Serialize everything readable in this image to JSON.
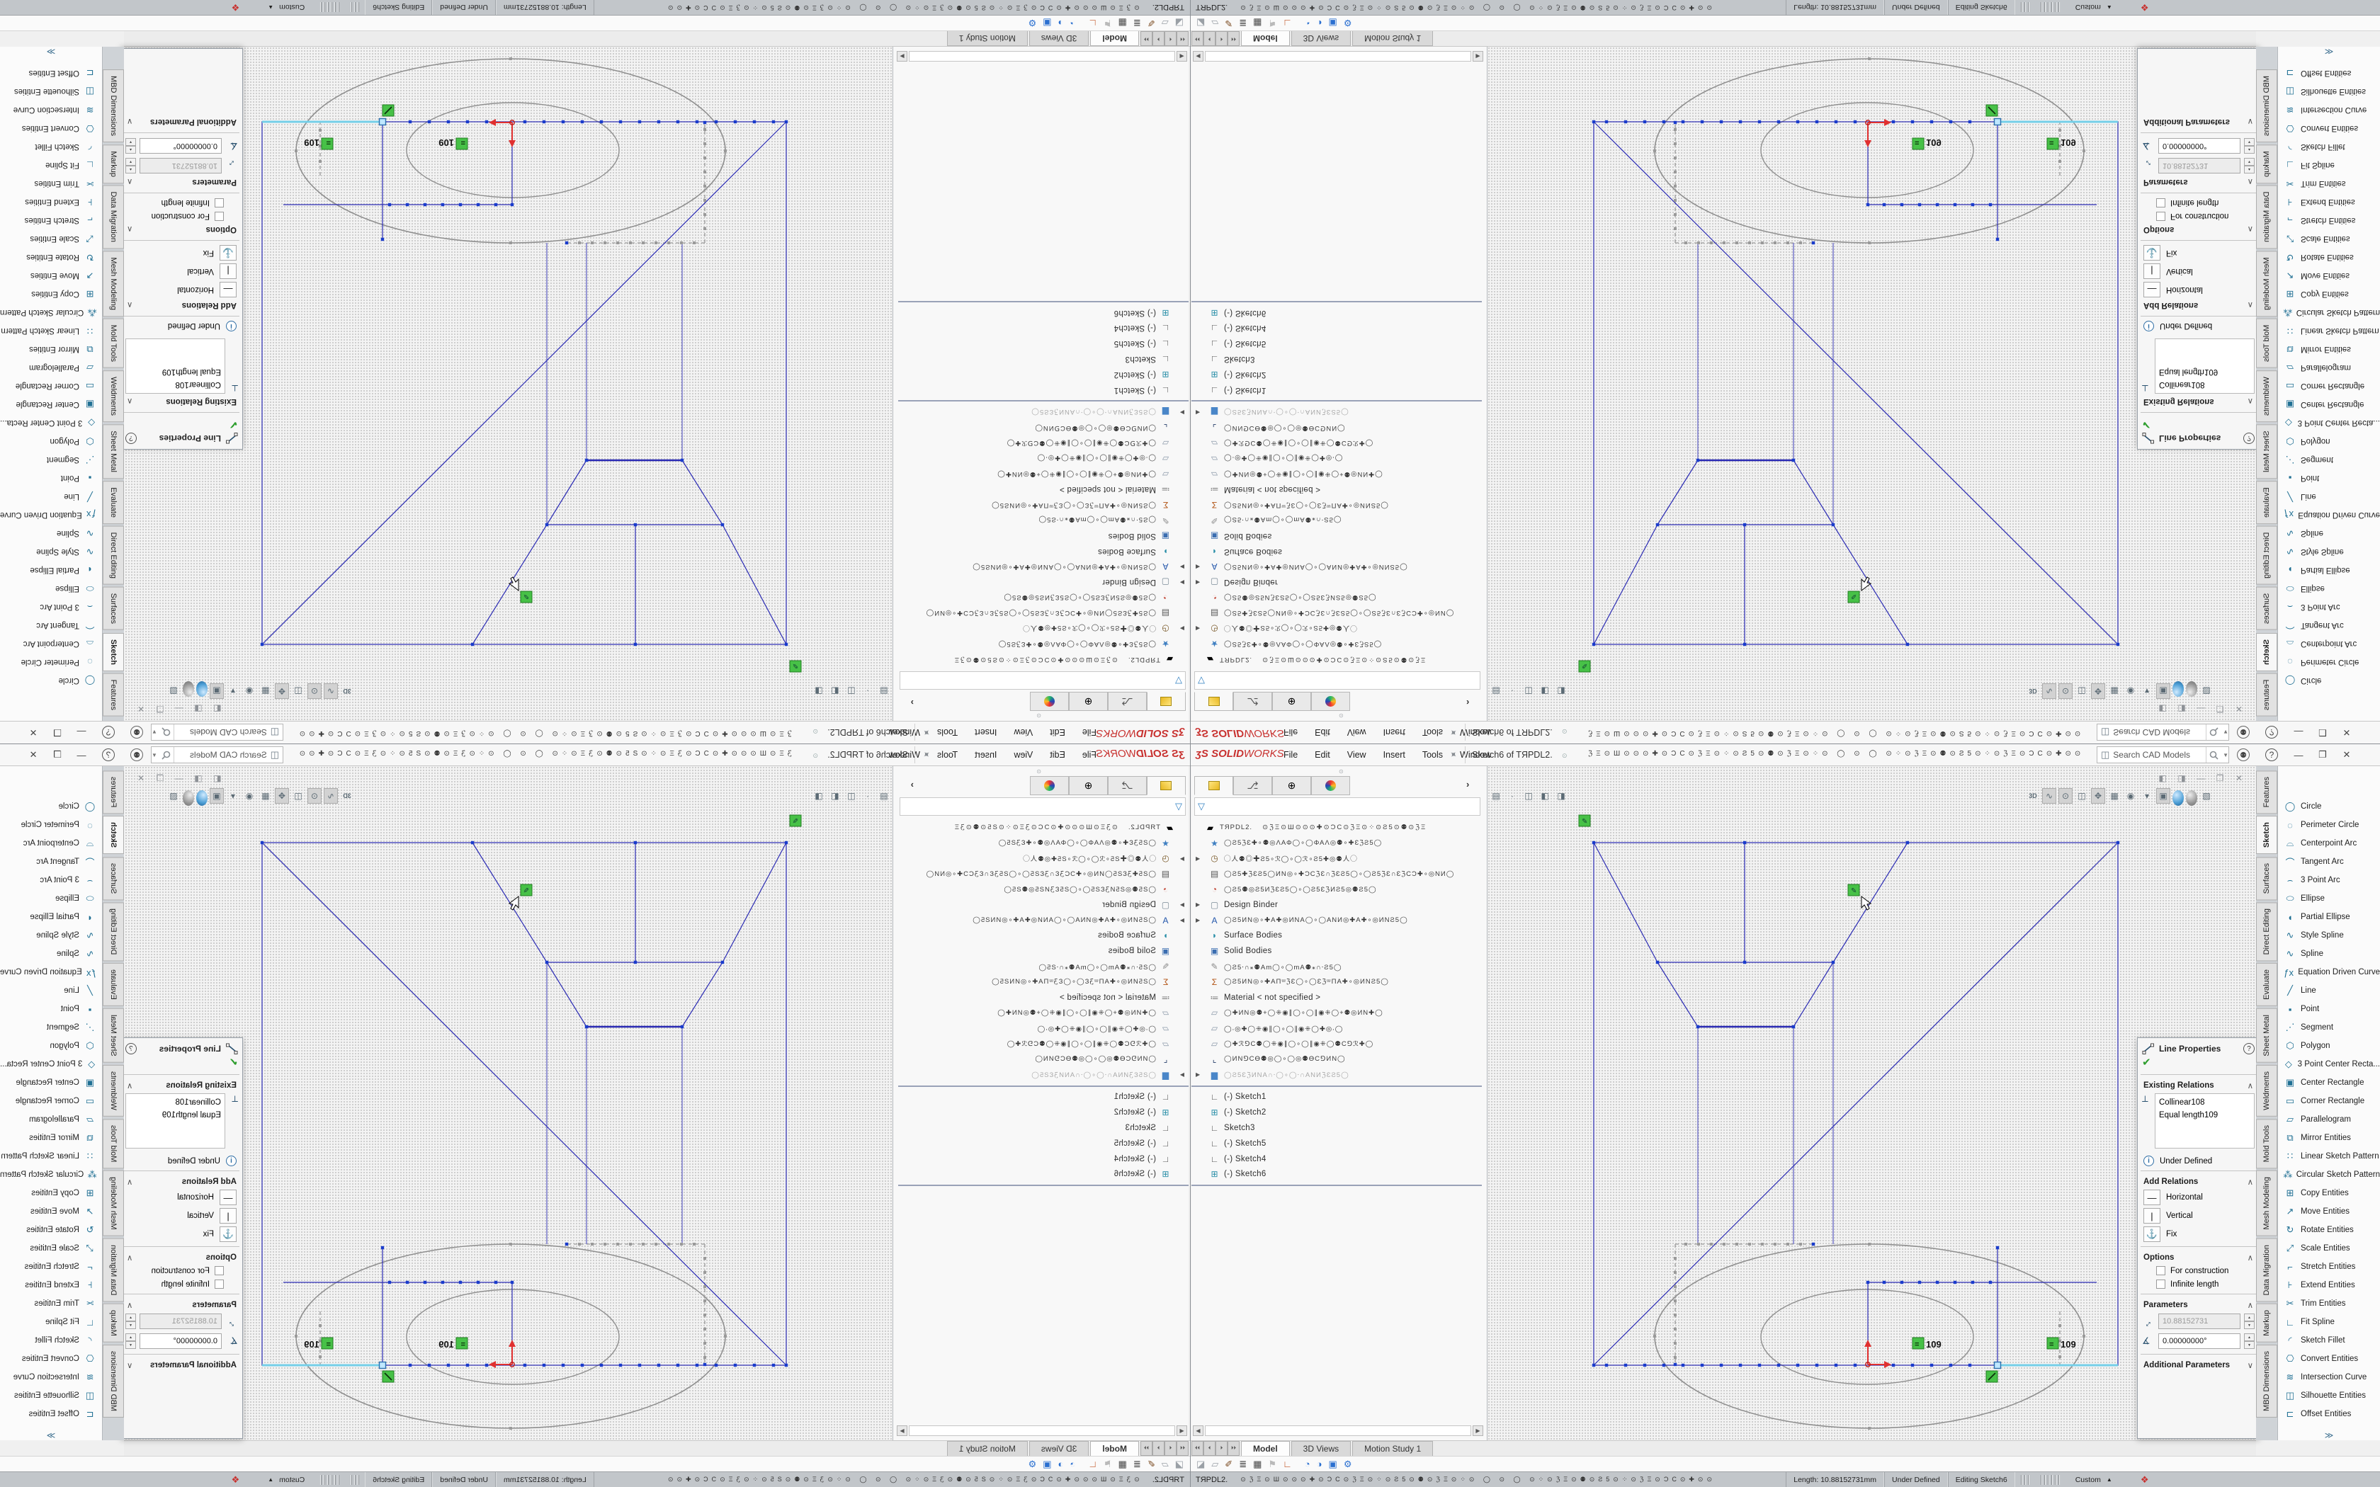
{
  "window": {
    "logo_3s": "ʒS",
    "logo_solid": "SOLID",
    "logo_works": "WORKS",
    "menus": [
      {
        "label": "File"
      },
      {
        "label": "Edit"
      },
      {
        "label": "View"
      },
      {
        "label": "Insert"
      },
      {
        "label": "Tools"
      },
      {
        "label": "Window"
      }
    ],
    "title": "Sketch6 of TЯPDL2.",
    "glyph_row": "ℨΞ⊙Ш⊙⊙⊙✚⊙ƆϹ⊙ℨΞ⊙⁘⊙Ƨ5⊙⚉⊙ℨΞ⊙⁘⊙ ◯ ⊙ ◯ ⊙⁘⊙ℨΞ⊙⚉⊙Ƨ5⊙⁘⊙ℨΞ⊙ƆϹ⊙✚⊙⊙…",
    "search_placeholder": "Search CAD Models"
  },
  "tree": {
    "rows": [
      {
        "cls": "root garb",
        "icon": "▰",
        "icls": "i-part",
        "label": "TЯPDL2.",
        "g2": "  ⊙ℨΞ⊙Ш⊙⊙⊙✚⊙ƆϹ⊙ℨΞ⊙⁘⊙Ƨ5⊙⚉⊙ℨΞ"
      },
      {
        "cls": "garb",
        "icon": "★",
        "icolor": "#3f7fc1",
        "label": "◯Ƨ5ℨƐ✚∘⚉◎ΛΑΦ◯∘◯ΦΑΛ◎⚉∘✚ƐℨƧ5◯"
      },
      {
        "cls": "garb",
        "arrow": true,
        "icon": "◷",
        "icolor": "#7a5a2a",
        "label": "◯人⚉◎✚Ƨ5∘ℛ◯∘◯ℛ∘Ƨ5✚◎⚉人◯"
      },
      {
        "cls": "garb",
        "icon": "▤",
        "icolor": "#555",
        "label": "◯Ƨ5✚ℨƐƧ5◯ИΝ◎∘✚ƆϹℨƐ∩ℨƐƧ5◯∘◯Ƨ5ℨƐ∩ƐℨϹƆ✚∘◎ΝИ◯"
      },
      {
        "cls": "garb",
        "icon": "◔",
        "icolor": "#c04030",
        "label": "◯Ƨ5⚉◎Ƨ5ИℨƐƧ5◯∘◯Ƨ5ƐℨИƧ5◎⚉Ƨ5◯"
      },
      {
        "cls": "",
        "arrow": true,
        "icon": "▢",
        "icolor": "#7a8a96",
        "label": "Design Binder"
      },
      {
        "cls": "garb",
        "arrow": true,
        "icon": "A",
        "icolor": "#2255aa",
        "label": "◯Ƨ5ИΝ◎∘✚Α✚◎ИΝΑ◯∘◯ΑΝИ◎✚Α✚∘◎ИΝƧ5◯"
      },
      {
        "cls": "",
        "icon": "◗",
        "icolor": "#2a8fa8",
        "label": "Surface Bodies"
      },
      {
        "cls": "",
        "icon": "▣",
        "icolor": "#3a6db0",
        "label": "Solid Bodies"
      },
      {
        "cls": "garb",
        "icon": "✎",
        "icolor": "#888",
        "label": "◯Ƨ5⸱∩⁎⚉Αm◯∘◯mΑ⚉⁎∩⸱Ƨ5◯"
      },
      {
        "cls": "garb",
        "icon": "Σ",
        "icolor": "#b05010",
        "label": "◯Ƨ5ИΝ◎∘✚ΑΠᵚℨƐ◯∘◯ƐℨᵚΠΑ✚∘◎ИΝƧ5◯"
      },
      {
        "cls": "",
        "icon": "≔",
        "icolor": "#777",
        "label": "Material  < not specified >"
      },
      {
        "cls": "garb",
        "icon": "▱",
        "icolor": "#8a98a8",
        "label": "◯✚ИΝ◎⚉+◯⁜◉∥◯∘◯∥◉⁜◯+⚉◎ИΝ✚◯"
      },
      {
        "cls": "garb",
        "icon": "▱",
        "icolor": "#8a98a8",
        "label": "◯⸳◎✚◯⁜◉∥◯∘◯∥◉⁜◯✚◎⸳◯"
      },
      {
        "cls": "garb",
        "icon": "▱",
        "icolor": "#8a98a8",
        "label": "◯✚ℛ⅁Ϲ⚉◯⁜◉∥◯∘◯∥◉⁜◯⚉Ϲ⅁ℛ✚◯"
      },
      {
        "cls": "garb",
        "icon": "⌞",
        "icolor": "#223a66",
        "label": "◯ИΝ⅁ϹƟ⚉◎◯∘◯◎⚉ƟϹ⅁ИΝ◯"
      },
      {
        "cls": "garb gray",
        "arrow": true,
        "icon": "▆",
        "icolor": "#4a86c8",
        "label": "◯Ƨ5ƐℨИΝΑ∩⸱◯∘◯⸱∩ΑΝИℨƐƧ5◯"
      },
      {
        "cls": "sep"
      },
      {
        "cls": "",
        "icon": "∟",
        "icolor": "#555",
        "label": "(-)  Sketch1"
      },
      {
        "cls": "",
        "icon": "⊞",
        "icolor": "#2a8fa8",
        "label": "(-)  Sketch2"
      },
      {
        "cls": "",
        "icon": "∟",
        "icolor": "#555",
        "label": "Sketch3"
      },
      {
        "cls": "",
        "icon": "∟",
        "icolor": "#555",
        "label": "(-)  Sketch5"
      },
      {
        "cls": "",
        "icon": "∟",
        "icolor": "#555",
        "label": "(-)  Sketch4"
      },
      {
        "cls": "",
        "icon": "⊞",
        "icolor": "#2a8fa8",
        "label": "(-)  Sketch6"
      },
      {
        "cls": "sep"
      }
    ]
  },
  "doc_tabs": [
    {
      "label": "Model",
      "cls": "active"
    },
    {
      "label": "3D Views",
      "cls": ""
    },
    {
      "label": "Motion Study 1",
      "cls": ""
    }
  ],
  "hud_left": [
    {
      "n": "document-properties-icon",
      "g": "▤"
    },
    {
      "n": "dropdown-icon",
      "g": "·"
    },
    {
      "n": "view-cube-wire-icon",
      "g": "◫"
    },
    {
      "n": "view-cube-half-icon",
      "g": "◧"
    },
    {
      "n": "view-cube-shade-icon",
      "g": "◨"
    }
  ],
  "hud_right": [
    {
      "n": "view-3d-icon",
      "g": "3D",
      "cls": "b3d"
    },
    {
      "n": "hide-spline-icon",
      "g": "∿",
      "cls": "pressed"
    },
    {
      "n": "hide-points-icon",
      "g": "⊙",
      "cls": "pressed"
    },
    {
      "n": "section-view-icon",
      "g": "◫",
      "cls": ""
    },
    {
      "n": "move-view-icon",
      "g": "✥",
      "cls": "pressed"
    },
    {
      "n": "grid-icon",
      "g": "▦",
      "cls": ""
    },
    {
      "n": "eye-icon",
      "g": "◉",
      "cls": ""
    },
    {
      "n": "eye-caret-icon",
      "g": "▾",
      "cls": ""
    },
    {
      "n": "shaded-view-icon",
      "g": "▣",
      "cls": "pressed"
    },
    {
      "n": "render-sphere-icon",
      "g": "",
      "cls": "sphere-blue"
    },
    {
      "n": "appearance-sphere-icon",
      "g": "",
      "cls": "sphere-gray"
    },
    {
      "n": "view-settings-cube-icon",
      "g": "▧",
      "cls": ""
    }
  ],
  "window_buttons": [
    {
      "n": "dock-pane-left-icon",
      "g": "◧"
    },
    {
      "n": "dock-pane-right-icon",
      "g": "◨"
    },
    {
      "n": "window-minimize-icon",
      "g": "—"
    },
    {
      "n": "window-restore-icon",
      "g": "❐"
    },
    {
      "n": "window-close-icon",
      "g": "✕"
    }
  ],
  "toolbar2_icons": [
    {
      "n": "eraser-icon",
      "g": "◪",
      "c": "#9aa0a6"
    },
    {
      "n": "sheets-icon",
      "g": "▱",
      "c": "#9aa0a6"
    },
    {
      "n": "brush-icon",
      "g": "✐",
      "c": "#7a4a20"
    },
    {
      "n": "line-weight-icon",
      "g": "≣",
      "c": "#222"
    },
    {
      "n": "table-icon",
      "g": "▦",
      "c": "#444"
    },
    {
      "n": "flag-icon",
      "g": "⚑",
      "c": "#b9b9b9"
    },
    {
      "n": "spectrum-icon",
      "g": "∟",
      "c": "#c05020"
    },
    {
      "n": "sep",
      "g": "",
      "c": ""
    },
    {
      "n": "balance-blue-icon",
      "g": "◔",
      "c": "#2a6fd0"
    },
    {
      "n": "clock-blue-icon",
      "g": "◑",
      "c": "#2a6fd0"
    },
    {
      "n": "folder-check-icon",
      "g": "▣",
      "c": "#2a6fd0"
    },
    {
      "n": "gear-icon",
      "g": "⚙",
      "c": "#2a6fd0"
    }
  ],
  "property_manager": {
    "title": "Line Properties",
    "existing_header": "Existing Relations",
    "relations": "Collinear108\nEqual length109",
    "status": "Under Defined",
    "add_header": "Add Relations",
    "btn_horizontal": "Horizontal",
    "btn_vertical": "Vertical",
    "btn_fix": "Fix",
    "options_header": "Options",
    "check1": "For construction",
    "check2": "Infinite length",
    "params_header": "Parameters",
    "length_value": "10.88152731",
    "angle_value": "0.00000000°",
    "additional_header": "Additional Parameters"
  },
  "command_tabs": [
    {
      "label": "Features",
      "cls": ""
    },
    {
      "label": "Sketch",
      "cls": "active"
    },
    {
      "label": "Surfaces",
      "cls": ""
    },
    {
      "label": "Direct Editing",
      "cls": ""
    },
    {
      "label": "Evaluate",
      "cls": ""
    },
    {
      "label": "Sheet Metal",
      "cls": ""
    },
    {
      "label": "Weldments",
      "cls": ""
    },
    {
      "label": "Mold Tools",
      "cls": ""
    },
    {
      "label": "Mesh Modeling",
      "cls": ""
    },
    {
      "label": "Data Migration",
      "cls": ""
    },
    {
      "label": "Markup",
      "cls": ""
    },
    {
      "label": "MBD Dimensions",
      "cls": ""
    }
  ],
  "tools": [
    {
      "icon": "◯",
      "label": "Circle"
    },
    {
      "icon": "◌",
      "label": "Perimeter Circle"
    },
    {
      "icon": "⌓",
      "label": "Centerpoint Arc"
    },
    {
      "icon": "⌒",
      "label": "Tangent Arc"
    },
    {
      "icon": "⌢",
      "label": "3 Point Arc"
    },
    {
      "icon": "⬭",
      "label": "Ellipse"
    },
    {
      "icon": "◖",
      "label": "Partial Ellipse"
    },
    {
      "icon": "∿",
      "label": "Style Spline"
    },
    {
      "icon": "∿",
      "label": "Spline"
    },
    {
      "icon": "ƒx",
      "label": "Equation Driven Curve"
    },
    {
      "icon": "╱",
      "label": "Line"
    },
    {
      "icon": "▪",
      "label": "Point"
    },
    {
      "icon": "⋰",
      "label": "Segment"
    },
    {
      "icon": "⬡",
      "label": "Polygon"
    },
    {
      "icon": "◇",
      "label": "3 Point Center Recta..."
    },
    {
      "icon": "▣",
      "label": "Center Rectangle"
    },
    {
      "icon": "▭",
      "label": "Corner Rectangle"
    },
    {
      "icon": "▱",
      "label": "Parallelogram"
    },
    {
      "icon": "⧉",
      "label": "Mirror Entities"
    },
    {
      "icon": "∷",
      "label": "Linear Sketch Pattern"
    },
    {
      "icon": "⁂",
      "label": "Circular Sketch Pattern"
    },
    {
      "icon": "⊞",
      "label": "Copy Entities"
    },
    {
      "icon": "↗",
      "label": "Move Entities"
    },
    {
      "icon": "↻",
      "label": "Rotate Entities"
    },
    {
      "icon": "⤢",
      "label": "Scale Entities"
    },
    {
      "icon": "⌐",
      "label": "Stretch Entities"
    },
    {
      "icon": "⊦",
      "label": "Extend Entities"
    },
    {
      "icon": "✂",
      "label": "Trim Entities"
    },
    {
      "icon": "∟",
      "label": "Fit Spline"
    },
    {
      "icon": "◜",
      "label": "Sketch Fillet"
    },
    {
      "icon": "⎔",
      "label": "Convert Entities"
    },
    {
      "icon": "≋",
      "label": "Intersection Curve"
    },
    {
      "icon": "◫",
      "label": "Silhouette Entities"
    },
    {
      "icon": "⊏",
      "label": "Offset Entities"
    }
  ],
  "tools_more_glyph": "≫",
  "statusbar": {
    "doc": "TЯPDL2.",
    "glyphs": "⊙ℨΞ⊙Ш⊙⊙⊙✚⊙ƆϹ⊙ℨΞ⊙⁘⊙Ƨ5⊙⚉⊙ℨΞ⊙⁘⊙ ◯ ⊙ ◯ ⊙⁘⊙ℨΞ⊙⚉⊙Ƨ5⊙⁘⊙ℨΞ⊙ƆϹ⊙✚⊙⊙",
    "length": "Length: 10.88152731mm",
    "state": "Under Defined",
    "editing": "Editing Sketch6",
    "custom": "Custom"
  },
  "viewport": {
    "eq_badge": "109"
  }
}
